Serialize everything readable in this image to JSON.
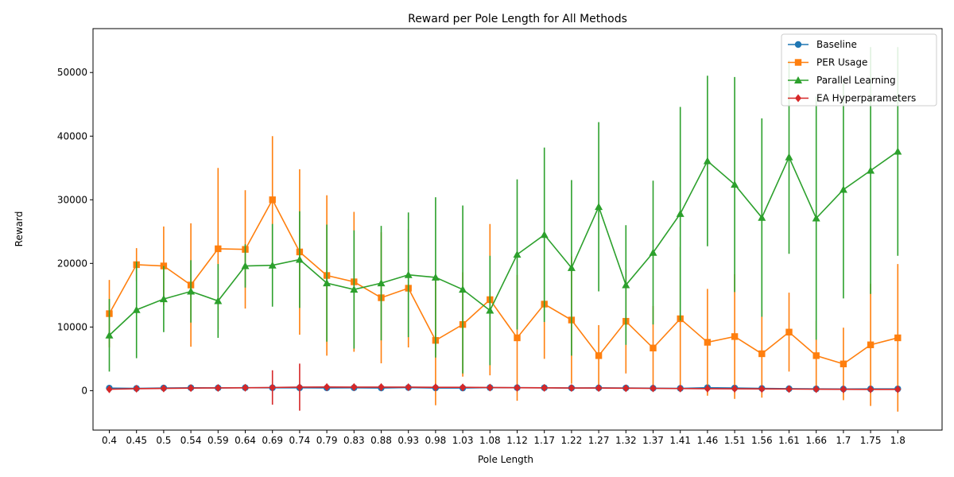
{
  "chart_data": {
    "type": "line",
    "title": "Reward per Pole Length for All Methods",
    "xlabel": "Pole Length",
    "ylabel": "Reward",
    "ylim": [
      -6200,
      56900
    ],
    "yticks": [
      0,
      10000,
      20000,
      30000,
      40000,
      50000
    ],
    "grid": false,
    "legend_position": "top-right",
    "categories": [
      "0.4",
      "0.45",
      "0.5",
      "0.54",
      "0.59",
      "0.64",
      "0.69",
      "0.74",
      "0.79",
      "0.83",
      "0.88",
      "0.93",
      "0.98",
      "1.03",
      "1.08",
      "1.12",
      "1.17",
      "1.22",
      "1.27",
      "1.32",
      "1.37",
      "1.41",
      "1.46",
      "1.51",
      "1.56",
      "1.61",
      "1.66",
      "1.7",
      "1.75",
      "1.8"
    ],
    "series": [
      {
        "name": "Baseline",
        "color": "#1f77b4",
        "marker": "circle",
        "values": [
          400,
          350,
          420,
          450,
          430,
          460,
          450,
          440,
          430,
          450,
          420,
          480,
          420,
          410,
          470,
          460,
          450,
          420,
          430,
          420,
          380,
          360,
          470,
          420,
          350,
          300,
          280,
          260,
          270,
          280
        ],
        "errors": [
          100,
          100,
          100,
          100,
          100,
          100,
          100,
          100,
          100,
          100,
          100,
          100,
          100,
          100,
          100,
          100,
          100,
          100,
          100,
          100,
          100,
          100,
          100,
          100,
          100,
          100,
          100,
          100,
          100,
          100
        ]
      },
      {
        "name": "PER Usage",
        "color": "#ff7f0e",
        "marker": "square",
        "values": [
          12100,
          19800,
          19600,
          16600,
          22300,
          22200,
          30000,
          21800,
          18100,
          17100,
          14600,
          16100,
          7900,
          10400,
          14300,
          8300,
          13600,
          11100,
          5500,
          10900,
          6700,
          11300,
          7600,
          8500,
          5800,
          9200,
          5500,
          4200,
          7200,
          8300
        ],
        "errors": [
          5300,
          2600,
          6200,
          9700,
          12700,
          9300,
          10000,
          13000,
          12600,
          11000,
          10300,
          9300,
          10200,
          8200,
          11900,
          9900,
          8600,
          10000,
          4800,
          8200,
          6600,
          11300,
          8400,
          9800,
          6900,
          6200,
          5500,
          5700,
          9600,
          11600
        ]
      },
      {
        "name": "Parallel Learning",
        "color": "#2ca02c",
        "marker": "triangle",
        "values": [
          8700,
          12700,
          14400,
          15600,
          14100,
          19600,
          19700,
          20600,
          16900,
          15900,
          16900,
          18200,
          17800,
          15900,
          12600,
          21400,
          24500,
          19300,
          28900,
          16600,
          21700,
          27800,
          36100,
          32400,
          27200,
          36700,
          27100,
          31600,
          34600,
          37600
        ],
        "errors": [
          5700,
          7600,
          5200,
          4900,
          5800,
          3400,
          6500,
          7600,
          9200,
          9300,
          9000,
          9800,
          12600,
          13200,
          8600,
          11800,
          13700,
          13800,
          13300,
          9400,
          11300,
          16800,
          13400,
          16900,
          15600,
          15200,
          19100,
          17100,
          19400,
          16400
        ]
      },
      {
        "name": "EA Hyperparameters",
        "color": "#d62728",
        "marker": "diamond",
        "values": [
          220,
          300,
          350,
          400,
          430,
          450,
          500,
          550,
          570,
          560,
          560,
          550,
          530,
          520,
          490,
          460,
          440,
          420,
          410,
          380,
          360,
          330,
          310,
          290,
          270,
          250,
          230,
          210,
          200,
          200
        ],
        "errors": [
          100,
          120,
          150,
          150,
          200,
          300,
          2700,
          3700,
          200,
          200,
          200,
          200,
          200,
          200,
          200,
          200,
          200,
          200,
          200,
          200,
          200,
          200,
          200,
          200,
          200,
          200,
          200,
          200,
          200,
          200
        ]
      }
    ]
  }
}
